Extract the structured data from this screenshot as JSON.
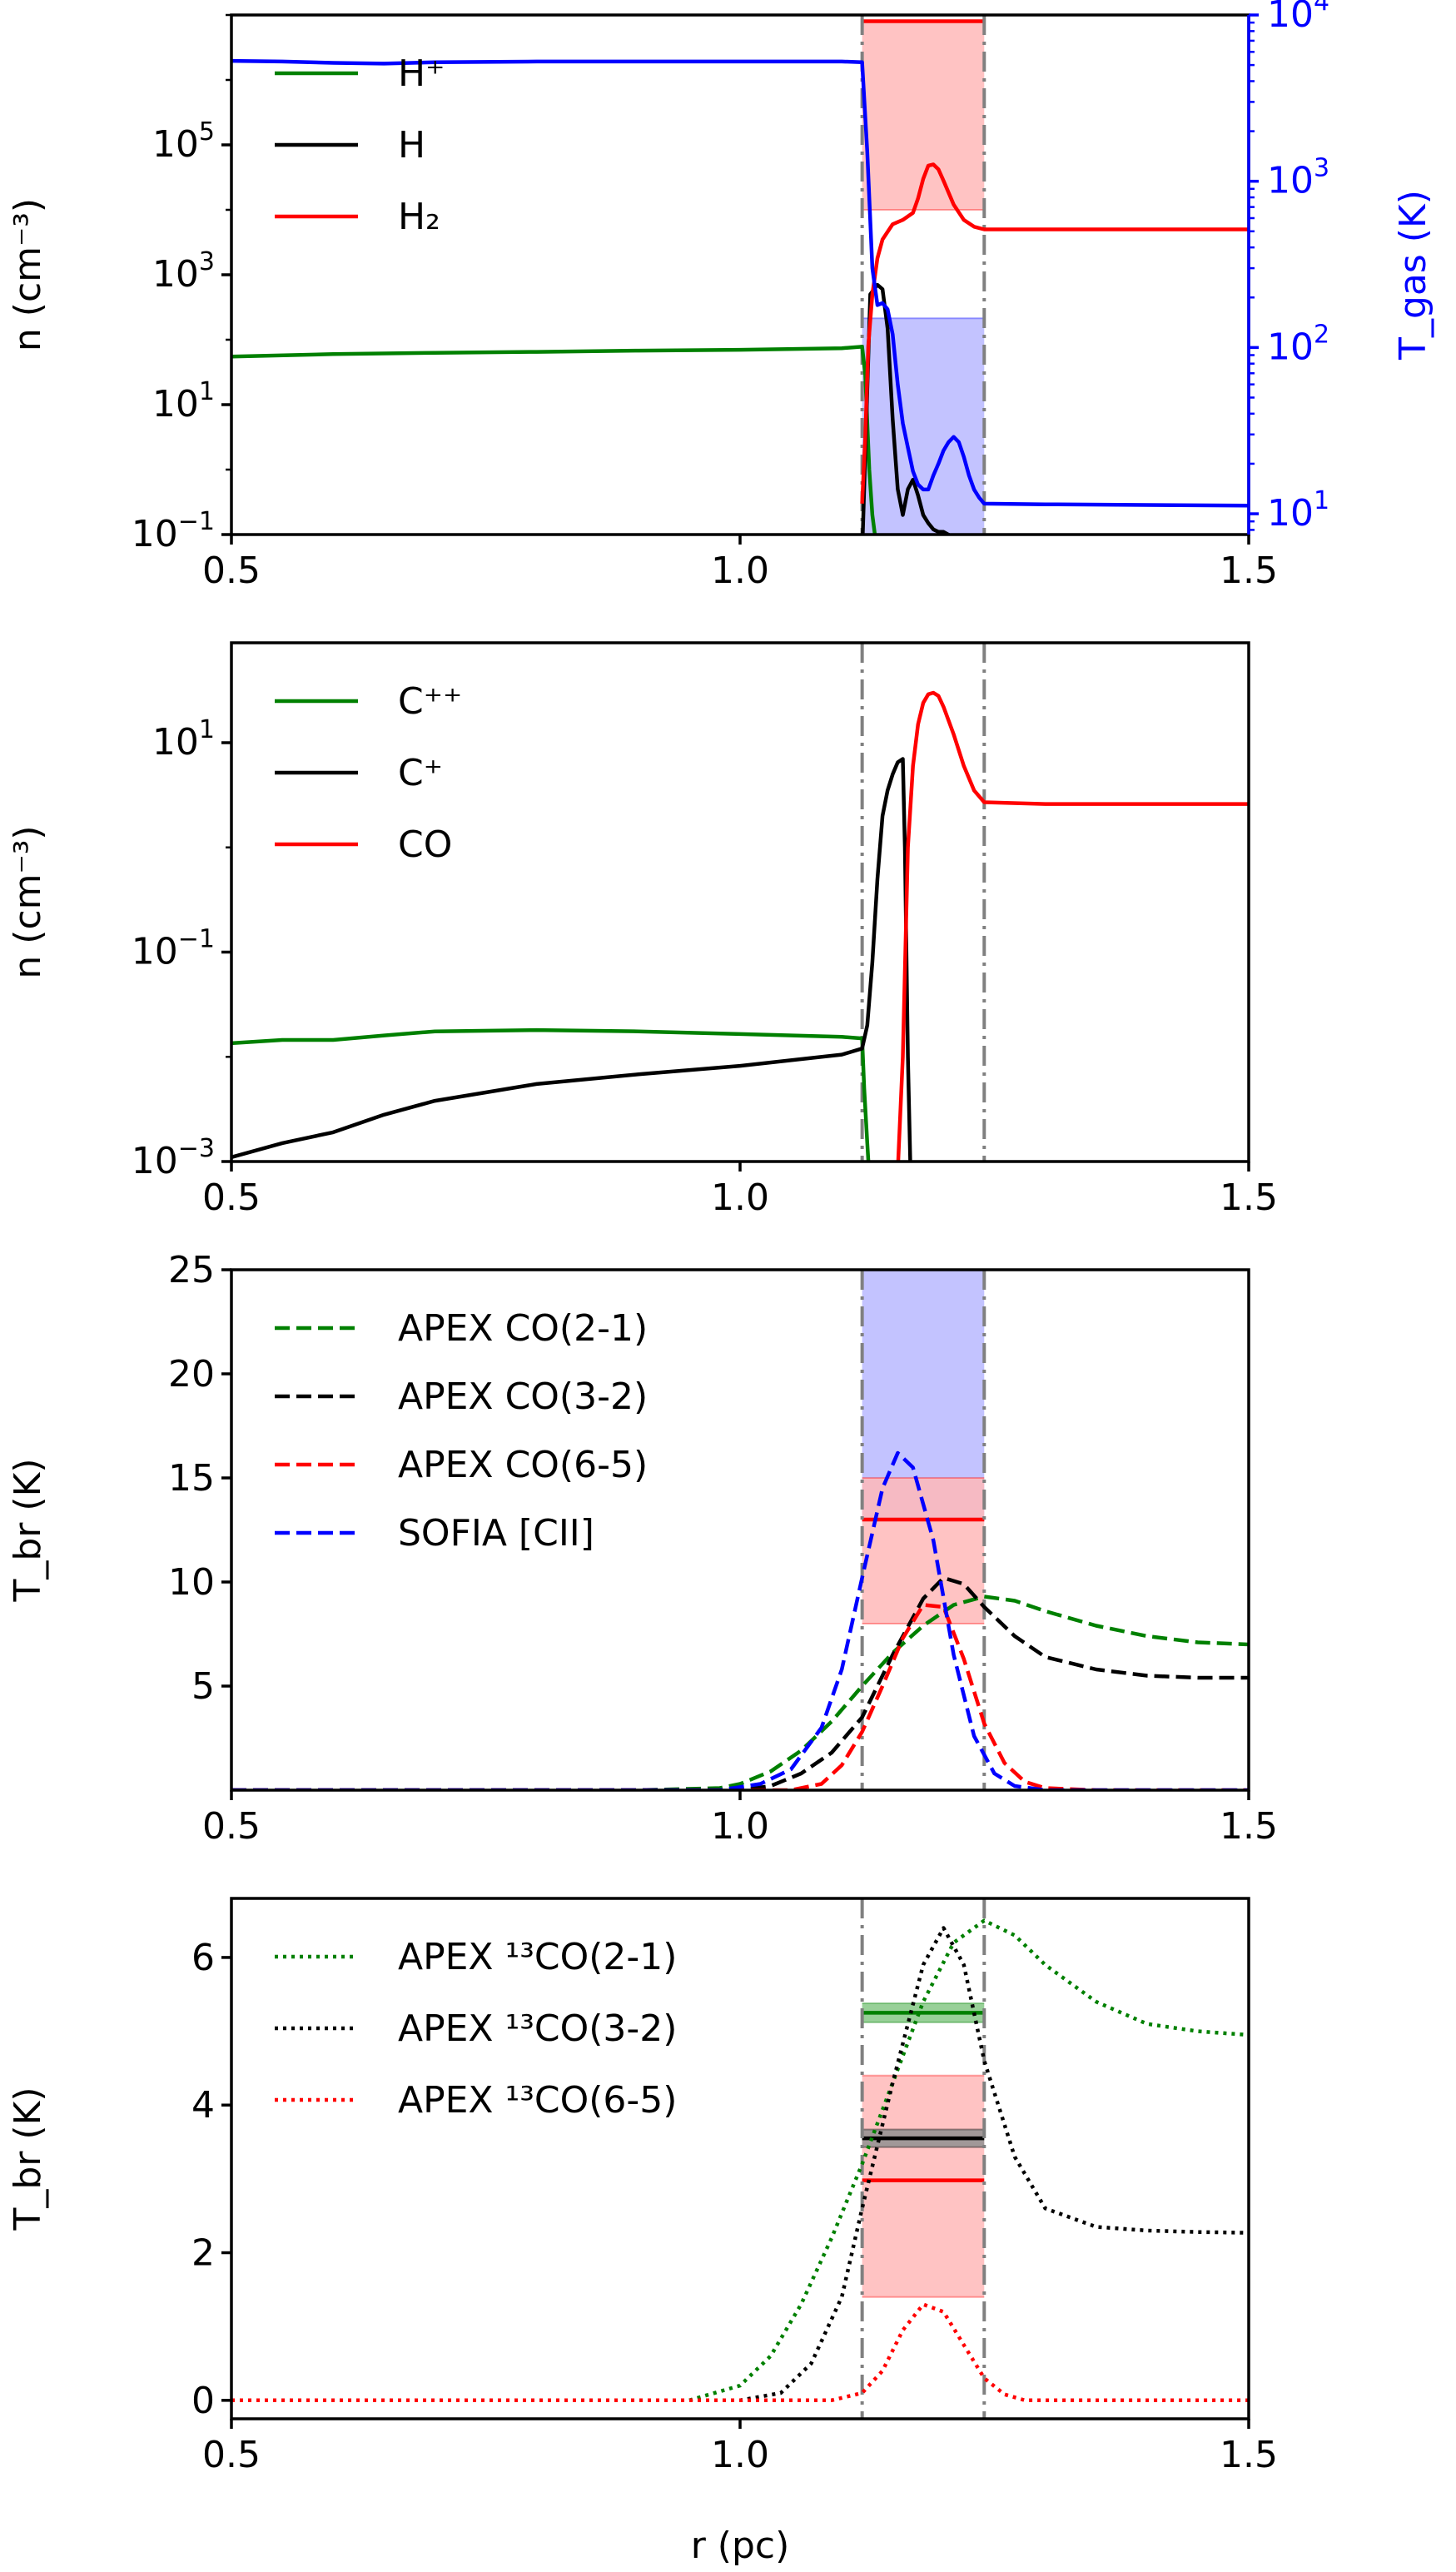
{
  "colors": {
    "green": "#008000",
    "black": "#000000",
    "red": "#ff0000",
    "blue": "#0000ff",
    "vline": "#808080",
    "redband": "#ffb8b8",
    "blueband": "#b8b8ff",
    "greenband": "#86c886",
    "grayband": "#909090"
  },
  "chart_data": [
    {
      "id": "p1",
      "type": "line",
      "xlabel": "",
      "ylabel": "n (cm⁻³)",
      "ylabel_right": "T_gas (K)",
      "xlim": [
        0.5,
        1.5
      ],
      "ylim": [
        0.1,
        10000000.0
      ],
      "yscale": "log",
      "ylim_right": [
        7.5,
        10000
      ],
      "yscale_right": "log",
      "xticks": [
        0.5,
        1.0,
        1.5
      ],
      "xtick_labels": [
        "0.5",
        "1.0",
        "1.5"
      ],
      "yticks": [
        0.1,
        10,
        1000,
        100000
      ],
      "ytick_labels": [
        [
          "10",
          "−1"
        ],
        [
          "10",
          "1"
        ],
        [
          "10",
          "3"
        ],
        [
          "10",
          "5"
        ]
      ],
      "yticks_right": [
        10,
        100,
        1000,
        10000
      ],
      "ytick_labels_right": [
        [
          "10",
          "1"
        ],
        [
          "10",
          "2"
        ],
        [
          "10",
          "3"
        ],
        [
          "10",
          "4"
        ]
      ],
      "vlines": [
        1.12,
        1.24
      ],
      "legend": {
        "placement": "upper-left",
        "entries": [
          {
            "label": "H⁺",
            "color": "green",
            "style": "solid"
          },
          {
            "label": "H",
            "color": "black",
            "style": "solid"
          },
          {
            "label": "H₂",
            "color": "red",
            "style": "solid"
          }
        ]
      },
      "bands": [
        {
          "x": [
            1.12,
            1.24
          ],
          "y": [
            10000.0,
            8000000.0
          ],
          "color": "redband",
          "line": 8000000.0,
          "line_color": "red"
        },
        {
          "x": [
            1.12,
            1.24
          ],
          "y": [
            3.2,
            150
          ],
          "color": "blueband",
          "line": 6.5,
          "line_color": "blue"
        }
      ],
      "series": [
        {
          "name": "H⁺",
          "color": "green",
          "style": "solid",
          "axis": "left",
          "x": [
            0.5,
            0.6,
            0.7,
            0.8,
            0.9,
            1.0,
            1.1,
            1.12,
            1.123,
            1.127,
            1.13,
            1.135
          ],
          "y": [
            55,
            60,
            63,
            65,
            68,
            70,
            74,
            78,
            30,
            1,
            0.2,
            0.05
          ]
        },
        {
          "name": "H",
          "color": "black",
          "style": "solid",
          "axis": "left",
          "x": [
            1.12,
            1.128,
            1.135,
            1.14,
            1.145,
            1.15,
            1.155,
            1.16,
            1.165,
            1.17,
            1.175,
            1.18,
            1.185,
            1.19,
            1.195,
            1.2,
            1.21,
            1.22
          ],
          "y": [
            0.05,
            500,
            700,
            600,
            150,
            6,
            0.5,
            0.2,
            0.5,
            0.7,
            0.4,
            0.2,
            0.15,
            0.12,
            0.11,
            0.11,
            0.09,
            0.05
          ]
        },
        {
          "name": "H₂",
          "color": "red",
          "style": "solid",
          "axis": "left",
          "x": [
            1.12,
            1.123,
            1.126,
            1.13,
            1.135,
            1.14,
            1.15,
            1.16,
            1.17,
            1.175,
            1.18,
            1.185,
            1.19,
            1.195,
            1.2,
            1.21,
            1.22,
            1.23,
            1.24,
            1.3,
            1.4,
            1.5
          ],
          "y": [
            0.3,
            3,
            80,
            500,
            1800,
            3500,
            6000,
            7000,
            9000,
            15000,
            30000,
            48000,
            50000,
            42000,
            28000,
            12000,
            7000,
            5500,
            5000,
            5000,
            5000,
            5000
          ]
        },
        {
          "name": "T_gas",
          "color": "blue",
          "style": "solid",
          "axis": "right",
          "x": [
            0.5,
            0.55,
            0.6,
            0.65,
            0.7,
            0.8,
            0.9,
            1.0,
            1.1,
            1.12,
            1.125,
            1.13,
            1.135,
            1.14,
            1.145,
            1.15,
            1.155,
            1.16,
            1.165,
            1.17,
            1.175,
            1.18,
            1.185,
            1.19,
            1.195,
            1.2,
            1.205,
            1.21,
            1.215,
            1.22,
            1.225,
            1.23,
            1.235,
            1.24,
            1.3,
            1.4,
            1.5
          ],
          "y": [
            5300,
            5250,
            5150,
            5100,
            5200,
            5250,
            5250,
            5250,
            5250,
            5200,
            1500,
            300,
            180,
            185,
            170,
            120,
            60,
            35,
            25,
            18,
            15,
            14,
            14,
            17,
            20,
            24,
            27,
            29,
            27,
            22,
            17,
            14,
            12.5,
            11.5,
            11.4,
            11.3,
            11.2
          ]
        }
      ]
    },
    {
      "id": "p2",
      "type": "line",
      "xlabel": "",
      "ylabel": "n (cm⁻³)",
      "xlim": [
        0.5,
        1.5
      ],
      "ylim": [
        0.001,
        90
      ],
      "yscale": "log",
      "xticks": [
        0.5,
        1.0,
        1.5
      ],
      "xtick_labels": [
        "0.5",
        "1.0",
        "1.5"
      ],
      "yticks": [
        0.001,
        0.1,
        10
      ],
      "ytick_labels": [
        [
          "10",
          "−3"
        ],
        [
          "10",
          "−1"
        ],
        [
          "10",
          "1"
        ]
      ],
      "vlines": [
        1.12,
        1.24
      ],
      "legend": {
        "placement": "upper-left",
        "entries": [
          {
            "label": "C⁺⁺",
            "color": "green",
            "style": "solid"
          },
          {
            "label": "C⁺",
            "color": "black",
            "style": "solid"
          },
          {
            "label": "CO",
            "color": "red",
            "style": "solid"
          }
        ]
      },
      "bands": [],
      "series": [
        {
          "name": "C⁺⁺",
          "color": "green",
          "style": "solid",
          "x": [
            0.5,
            0.55,
            0.6,
            0.65,
            0.7,
            0.8,
            0.9,
            1.0,
            1.1,
            1.12,
            1.122,
            1.125,
            1.128
          ],
          "y": [
            0.0135,
            0.0145,
            0.0145,
            0.016,
            0.0175,
            0.018,
            0.0175,
            0.0165,
            0.0155,
            0.015,
            0.005,
            0.0015,
            0.0005
          ]
        },
        {
          "name": "C⁺",
          "color": "black",
          "style": "solid",
          "x": [
            0.5,
            0.55,
            0.6,
            0.65,
            0.7,
            0.8,
            0.9,
            1.0,
            1.1,
            1.12,
            1.125,
            1.13,
            1.135,
            1.14,
            1.145,
            1.15,
            1.155,
            1.16,
            1.162,
            1.165,
            1.168
          ],
          "y": [
            0.0011,
            0.0015,
            0.0019,
            0.0028,
            0.0038,
            0.0055,
            0.0068,
            0.0082,
            0.0105,
            0.012,
            0.02,
            0.08,
            0.5,
            2,
            3.5,
            5,
            6.5,
            7,
            1,
            0.01,
            0.0005
          ]
        },
        {
          "name": "CO",
          "color": "red",
          "style": "solid",
          "x": [
            1.155,
            1.16,
            1.165,
            1.17,
            1.175,
            1.18,
            1.185,
            1.19,
            1.195,
            1.2,
            1.21,
            1.22,
            1.23,
            1.24,
            1.3,
            1.4,
            1.5
          ],
          "y": [
            0.0008,
            0.01,
            1,
            6,
            15,
            24,
            29,
            30,
            28,
            22,
            12,
            6,
            3.5,
            2.7,
            2.6,
            2.6,
            2.6
          ]
        }
      ]
    },
    {
      "id": "p3",
      "type": "line",
      "xlabel": "",
      "ylabel": "T_br (K)",
      "xlim": [
        0.5,
        1.5
      ],
      "ylim": [
        0,
        25
      ],
      "yscale": "linear",
      "xticks": [
        0.5,
        1.0,
        1.5
      ],
      "xtick_labels": [
        "0.5",
        "1.0",
        "1.5"
      ],
      "yticks": [
        5,
        10,
        15,
        20,
        25
      ],
      "ytick_labels": [
        "5",
        "10",
        "15",
        "20",
        "25"
      ],
      "vlines": [
        1.12,
        1.24
      ],
      "legend": {
        "placement": "upper-left",
        "entries": [
          {
            "label": "APEX CO(2-1)",
            "color": "green",
            "style": "dashed"
          },
          {
            "label": "APEX CO(3-2)",
            "color": "black",
            "style": "dashed"
          },
          {
            "label": "APEX CO(6-5)",
            "color": "red",
            "style": "dashed"
          },
          {
            "label": "SOFIA [CII]",
            "color": "blue",
            "style": "dashed"
          }
        ]
      },
      "bands": [
        {
          "x": [
            1.12,
            1.24
          ],
          "y": [
            13,
            25
          ],
          "color": "blueband",
          "line": 13,
          "line_color": "blue"
        },
        {
          "x": [
            1.12,
            1.24
          ],
          "y": [
            8,
            15
          ],
          "color": "redband",
          "line": 13,
          "line_color": "red"
        }
      ],
      "series": [
        {
          "name": "APEX CO(2-1)",
          "color": "green",
          "style": "dashed",
          "x": [
            0.5,
            0.9,
            0.98,
            1.0,
            1.03,
            1.06,
            1.09,
            1.12,
            1.15,
            1.18,
            1.21,
            1.24,
            1.27,
            1.3,
            1.35,
            1.4,
            1.45,
            1.5
          ],
          "y": [
            0,
            0,
            0.1,
            0.3,
            0.9,
            1.9,
            3.3,
            5,
            6.6,
            7.9,
            8.9,
            9.3,
            9.1,
            8.6,
            7.9,
            7.4,
            7.1,
            7
          ]
        },
        {
          "name": "APEX CO(3-2)",
          "color": "black",
          "style": "dashed",
          "x": [
            0.5,
            1.0,
            1.03,
            1.06,
            1.09,
            1.12,
            1.15,
            1.18,
            1.2,
            1.22,
            1.24,
            1.27,
            1.3,
            1.35,
            1.4,
            1.45,
            1.5
          ],
          "y": [
            0,
            0,
            0.2,
            0.8,
            1.8,
            3.5,
            6.5,
            9.2,
            10.2,
            9.9,
            8.8,
            7.4,
            6.4,
            5.8,
            5.5,
            5.4,
            5.4
          ]
        },
        {
          "name": "APEX CO(6-5)",
          "color": "red",
          "style": "dashed",
          "x": [
            0.5,
            1.05,
            1.08,
            1.1,
            1.12,
            1.14,
            1.16,
            1.18,
            1.2,
            1.22,
            1.24,
            1.26,
            1.28,
            1.3,
            1.35,
            1.5
          ],
          "y": [
            0,
            0,
            0.3,
            1.2,
            2.8,
            5,
            7.3,
            8.9,
            8.8,
            6.3,
            3.2,
            1.3,
            0.4,
            0.1,
            0,
            0
          ]
        },
        {
          "name": "SOFIA [CII]",
          "color": "blue",
          "style": "dashed",
          "x": [
            0.5,
            0.98,
            1.02,
            1.05,
            1.08,
            1.1,
            1.12,
            1.14,
            1.155,
            1.17,
            1.19,
            1.21,
            1.23,
            1.25,
            1.27,
            1.3,
            1.5
          ],
          "y": [
            0,
            0,
            0.3,
            1,
            3,
            5.8,
            10.2,
            14.5,
            16.2,
            15.5,
            12,
            6.5,
            2.6,
            0.8,
            0.2,
            0,
            0
          ]
        }
      ]
    },
    {
      "id": "p4",
      "type": "line",
      "xlabel": "r (pc)",
      "ylabel": "T_br (K)",
      "xlim": [
        0.5,
        1.5
      ],
      "ylim": [
        -0.25,
        6.8
      ],
      "yscale": "linear",
      "xticks": [
        0.5,
        1.0,
        1.5
      ],
      "xtick_labels": [
        "0.5",
        "1.0",
        "1.5"
      ],
      "yticks": [
        0,
        2,
        4,
        6
      ],
      "ytick_labels": [
        "0",
        "2",
        "4",
        "6"
      ],
      "vlines": [
        1.12,
        1.24
      ],
      "legend": {
        "placement": "upper-left",
        "entries": [
          {
            "label": "APEX ¹³CO(2-1)",
            "color": "green",
            "style": "dotted"
          },
          {
            "label": "APEX ¹³CO(3-2)",
            "color": "black",
            "style": "dotted"
          },
          {
            "label": "APEX ¹³CO(6-5)",
            "color": "red",
            "style": "dotted"
          }
        ]
      },
      "bands": [
        {
          "x": [
            1.12,
            1.24
          ],
          "y": [
            1.4,
            4.4
          ],
          "color": "redband",
          "line": 2.98,
          "line_color": "red"
        },
        {
          "x": [
            1.12,
            1.24
          ],
          "y": [
            5.12,
            5.38
          ],
          "color": "greenband",
          "line": 5.25,
          "line_color": "green"
        },
        {
          "x": [
            1.12,
            1.24
          ],
          "y": [
            3.43,
            3.67
          ],
          "color": "grayband",
          "line": 3.55,
          "line_color": "black"
        }
      ],
      "series": [
        {
          "name": "APEX ¹³CO(2-1)",
          "color": "green",
          "style": "dotted",
          "x": [
            0.5,
            0.95,
            1.0,
            1.03,
            1.06,
            1.09,
            1.12,
            1.15,
            1.18,
            1.21,
            1.24,
            1.27,
            1.3,
            1.35,
            1.4,
            1.45,
            1.5
          ],
          "y": [
            0,
            0,
            0.2,
            0.6,
            1.3,
            2.2,
            3.2,
            4.3,
            5.4,
            6.2,
            6.5,
            6.3,
            5.9,
            5.4,
            5.1,
            5,
            4.95
          ]
        },
        {
          "name": "APEX ¹³CO(3-2)",
          "color": "black",
          "style": "dotted",
          "x": [
            0.5,
            1.0,
            1.04,
            1.07,
            1.1,
            1.12,
            1.15,
            1.18,
            1.2,
            1.22,
            1.24,
            1.27,
            1.3,
            1.35,
            1.4,
            1.45,
            1.5
          ],
          "y": [
            0,
            0,
            0.1,
            0.5,
            1.4,
            2.6,
            4.3,
            5.9,
            6.4,
            5.9,
            4.6,
            3.3,
            2.6,
            2.35,
            2.3,
            2.28,
            2.27
          ]
        },
        {
          "name": "APEX ¹³CO(6-5)",
          "color": "red",
          "style": "dotted",
          "x": [
            0.5,
            1.09,
            1.12,
            1.14,
            1.16,
            1.18,
            1.2,
            1.22,
            1.24,
            1.26,
            1.28,
            1.5
          ],
          "y": [
            0,
            0,
            0.1,
            0.4,
            0.95,
            1.3,
            1.2,
            0.75,
            0.3,
            0.08,
            0,
            0
          ]
        }
      ]
    }
  ]
}
